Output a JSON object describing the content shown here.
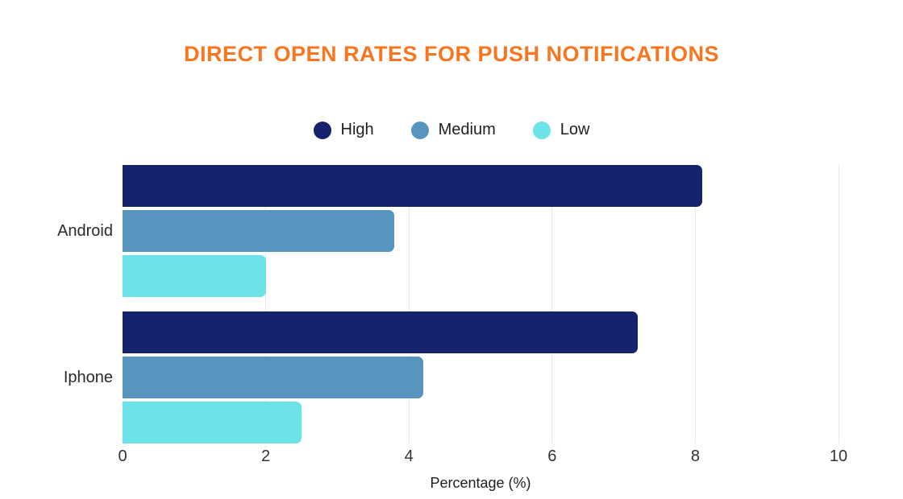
{
  "title": {
    "text": "DIRECT OPEN RATES FOR PUSH NOTIFICATIONS",
    "color": "#F8761F"
  },
  "chart_data": {
    "type": "bar",
    "orientation": "horizontal",
    "title": "DIRECT OPEN RATES FOR PUSH NOTIFICATIONS",
    "categories": [
      "Android",
      "Iphone"
    ],
    "series": [
      {
        "name": "High",
        "color": "#15236E",
        "values": [
          8.1,
          7.2
        ]
      },
      {
        "name": "Medium",
        "color": "#5795BE",
        "values": [
          3.8,
          4.2
        ]
      },
      {
        "name": "Low",
        "color": "#6BE3E8",
        "values": [
          2.0,
          2.5
        ]
      }
    ],
    "xlabel": "Percentage (%)",
    "xlim": [
      0,
      10
    ],
    "xticks": [
      0,
      2,
      4,
      6,
      8,
      10
    ],
    "grid": true,
    "gridline_color": "#E8E8EE",
    "legend_position": "top"
  }
}
